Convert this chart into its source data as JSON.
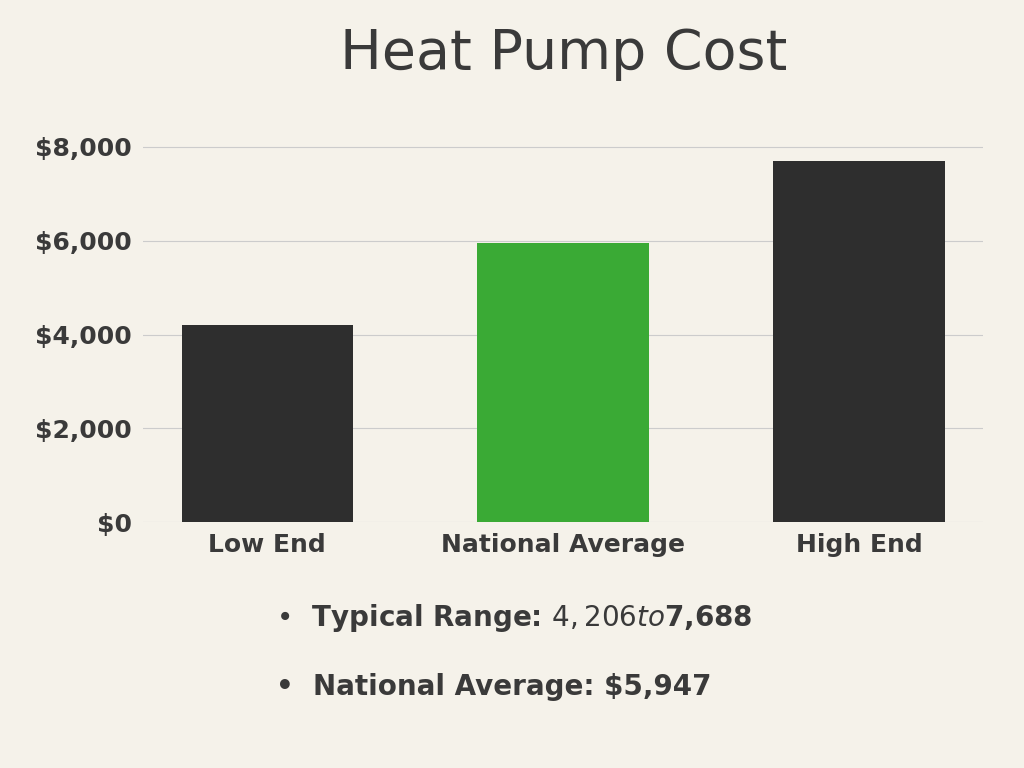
{
  "title": "Heat Pump Cost",
  "categories": [
    "Low End",
    "National Average",
    "High End"
  ],
  "values": [
    4206,
    5947,
    7688
  ],
  "bar_colors": [
    "#2e2e2e",
    "#3aaa35",
    "#2e2e2e"
  ],
  "background_color": "#f5f2ea",
  "text_color": "#3a3a3a",
  "title_fontsize": 40,
  "tick_fontsize": 18,
  "xtick_fontsize": 18,
  "ylim": [
    0,
    9000
  ],
  "yticks": [
    0,
    2000,
    4000,
    6000,
    8000
  ],
  "ytick_labels": [
    "$0",
    "$2,000",
    "$4,000",
    "$6,000",
    "$8,000"
  ],
  "legend_items": [
    "Typical Range: $4,206 to $7,688",
    "National Average: $5,947"
  ],
  "legend_fontsize": 20,
  "grid_color": "#cccccc",
  "bar_width": 0.58
}
